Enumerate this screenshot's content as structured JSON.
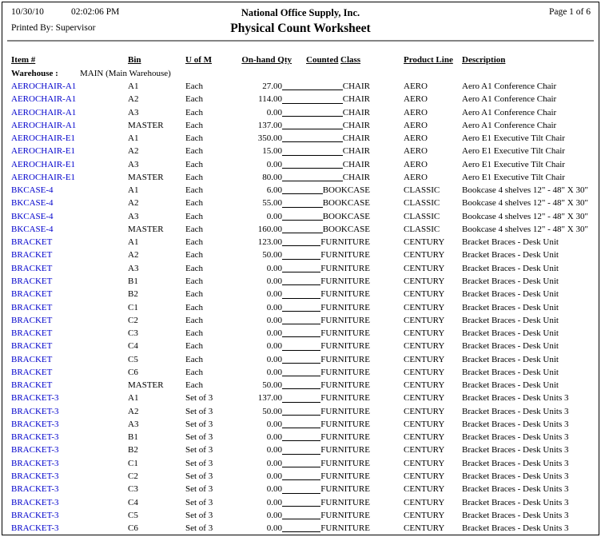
{
  "header": {
    "date": "10/30/10",
    "time": "02:02:06 PM",
    "company": "National Office Supply, Inc.",
    "page_label": "Page 1 of 6",
    "printed_by": "Printed By: Supervisor",
    "title": "Physical Count Worksheet"
  },
  "columns": {
    "item": "Item #",
    "bin": "Bin",
    "uofm": "U of M",
    "qty": "On-hand Qty",
    "counted": "Counted",
    "class": "Class",
    "product_line": "Product Line",
    "description": "Description"
  },
  "warehouse": {
    "label": "Warehouse :",
    "value": "MAIN (Main Warehouse)"
  },
  "colors": {
    "link": "#0000CC",
    "text": "#000000",
    "rule": "#848484"
  },
  "rows": [
    {
      "item": "AEROCHAIR-A1",
      "bin": "A1",
      "uofm": "Each",
      "qty": "27.00",
      "class": "CHAIR",
      "product_line": "AERO",
      "description": "Aero A1 Conference Chair"
    },
    {
      "item": "AEROCHAIR-A1",
      "bin": "A2",
      "uofm": "Each",
      "qty": "114.00",
      "class": "CHAIR",
      "product_line": "AERO",
      "description": "Aero A1 Conference Chair"
    },
    {
      "item": "AEROCHAIR-A1",
      "bin": "A3",
      "uofm": "Each",
      "qty": "0.00",
      "class": "CHAIR",
      "product_line": "AERO",
      "description": "Aero A1 Conference Chair"
    },
    {
      "item": "AEROCHAIR-A1",
      "bin": "MASTER",
      "uofm": "Each",
      "qty": "137.00",
      "class": "CHAIR",
      "product_line": "AERO",
      "description": "Aero A1 Conference Chair"
    },
    {
      "item": "AEROCHAIR-E1",
      "bin": "A1",
      "uofm": "Each",
      "qty": "350.00",
      "class": "CHAIR",
      "product_line": "AERO",
      "description": "Aero E1 Executive Tilt Chair"
    },
    {
      "item": "AEROCHAIR-E1",
      "bin": "A2",
      "uofm": "Each",
      "qty": "15.00",
      "class": "CHAIR",
      "product_line": "AERO",
      "description": "Aero E1 Executive Tilt Chair"
    },
    {
      "item": "AEROCHAIR-E1",
      "bin": "A3",
      "uofm": "Each",
      "qty": "0.00",
      "class": "CHAIR",
      "product_line": "AERO",
      "description": "Aero E1 Executive Tilt Chair"
    },
    {
      "item": "AEROCHAIR-E1",
      "bin": "MASTER",
      "uofm": "Each",
      "qty": "80.00",
      "class": "CHAIR",
      "product_line": "AERO",
      "description": "Aero E1 Executive Tilt Chair"
    },
    {
      "item": "BKCASE-4",
      "bin": "A1",
      "uofm": "Each",
      "qty": "6.00",
      "class": "BOOKCASE",
      "product_line": "CLASSIC",
      "description": "Bookcase 4 shelves 12\" - 48\" X 30\""
    },
    {
      "item": "BKCASE-4",
      "bin": "A2",
      "uofm": "Each",
      "qty": "55.00",
      "class": "BOOKCASE",
      "product_line": "CLASSIC",
      "description": "Bookcase 4 shelves 12\" - 48\" X 30\""
    },
    {
      "item": "BKCASE-4",
      "bin": "A3",
      "uofm": "Each",
      "qty": "0.00",
      "class": "BOOKCASE",
      "product_line": "CLASSIC",
      "description": "Bookcase 4 shelves 12\" - 48\" X 30\""
    },
    {
      "item": "BKCASE-4",
      "bin": "MASTER",
      "uofm": "Each",
      "qty": "160.00",
      "class": "BOOKCASE",
      "product_line": "CLASSIC",
      "description": "Bookcase 4 shelves 12\" - 48\" X 30\""
    },
    {
      "item": "BRACKET",
      "bin": "A1",
      "uofm": "Each",
      "qty": "123.00",
      "class": "FURNITURE",
      "product_line": "CENTURY",
      "description": "Bracket Braces - Desk Unit"
    },
    {
      "item": "BRACKET",
      "bin": "A2",
      "uofm": "Each",
      "qty": "50.00",
      "class": "FURNITURE",
      "product_line": "CENTURY",
      "description": "Bracket Braces - Desk Unit"
    },
    {
      "item": "BRACKET",
      "bin": "A3",
      "uofm": "Each",
      "qty": "0.00",
      "class": "FURNITURE",
      "product_line": "CENTURY",
      "description": "Bracket Braces - Desk Unit"
    },
    {
      "item": "BRACKET",
      "bin": "B1",
      "uofm": "Each",
      "qty": "0.00",
      "class": "FURNITURE",
      "product_line": "CENTURY",
      "description": "Bracket Braces - Desk Unit"
    },
    {
      "item": "BRACKET",
      "bin": "B2",
      "uofm": "Each",
      "qty": "0.00",
      "class": "FURNITURE",
      "product_line": "CENTURY",
      "description": "Bracket Braces - Desk Unit"
    },
    {
      "item": "BRACKET",
      "bin": "C1",
      "uofm": "Each",
      "qty": "0.00",
      "class": "FURNITURE",
      "product_line": "CENTURY",
      "description": "Bracket Braces - Desk Unit"
    },
    {
      "item": "BRACKET",
      "bin": "C2",
      "uofm": "Each",
      "qty": "0.00",
      "class": "FURNITURE",
      "product_line": "CENTURY",
      "description": "Bracket Braces - Desk Unit"
    },
    {
      "item": "BRACKET",
      "bin": "C3",
      "uofm": "Each",
      "qty": "0.00",
      "class": "FURNITURE",
      "product_line": "CENTURY",
      "description": "Bracket Braces - Desk Unit"
    },
    {
      "item": "BRACKET",
      "bin": "C4",
      "uofm": "Each",
      "qty": "0.00",
      "class": "FURNITURE",
      "product_line": "CENTURY",
      "description": "Bracket Braces - Desk Unit"
    },
    {
      "item": "BRACKET",
      "bin": "C5",
      "uofm": "Each",
      "qty": "0.00",
      "class": "FURNITURE",
      "product_line": "CENTURY",
      "description": "Bracket Braces - Desk Unit"
    },
    {
      "item": "BRACKET",
      "bin": "C6",
      "uofm": "Each",
      "qty": "0.00",
      "class": "FURNITURE",
      "product_line": "CENTURY",
      "description": "Bracket Braces - Desk Unit"
    },
    {
      "item": "BRACKET",
      "bin": "MASTER",
      "uofm": "Each",
      "qty": "50.00",
      "class": "FURNITURE",
      "product_line": "CENTURY",
      "description": "Bracket Braces - Desk Unit"
    },
    {
      "item": "BRACKET-3",
      "bin": "A1",
      "uofm": "Set of 3",
      "qty": "137.00",
      "class": "FURNITURE",
      "product_line": "CENTURY",
      "description": "Bracket Braces - Desk Units 3"
    },
    {
      "item": "BRACKET-3",
      "bin": "A2",
      "uofm": "Set of 3",
      "qty": "50.00",
      "class": "FURNITURE",
      "product_line": "CENTURY",
      "description": "Bracket Braces - Desk Units 3"
    },
    {
      "item": "BRACKET-3",
      "bin": "A3",
      "uofm": "Set of 3",
      "qty": "0.00",
      "class": "FURNITURE",
      "product_line": "CENTURY",
      "description": "Bracket Braces - Desk Units 3"
    },
    {
      "item": "BRACKET-3",
      "bin": "B1",
      "uofm": "Set of 3",
      "qty": "0.00",
      "class": "FURNITURE",
      "product_line": "CENTURY",
      "description": "Bracket Braces - Desk Units 3"
    },
    {
      "item": "BRACKET-3",
      "bin": "B2",
      "uofm": "Set of 3",
      "qty": "0.00",
      "class": "FURNITURE",
      "product_line": "CENTURY",
      "description": "Bracket Braces - Desk Units 3"
    },
    {
      "item": "BRACKET-3",
      "bin": "C1",
      "uofm": "Set of 3",
      "qty": "0.00",
      "class": "FURNITURE",
      "product_line": "CENTURY",
      "description": "Bracket Braces - Desk Units 3"
    },
    {
      "item": "BRACKET-3",
      "bin": "C2",
      "uofm": "Set of 3",
      "qty": "0.00",
      "class": "FURNITURE",
      "product_line": "CENTURY",
      "description": "Bracket Braces - Desk Units 3"
    },
    {
      "item": "BRACKET-3",
      "bin": "C3",
      "uofm": "Set of 3",
      "qty": "0.00",
      "class": "FURNITURE",
      "product_line": "CENTURY",
      "description": "Bracket Braces - Desk Units 3"
    },
    {
      "item": "BRACKET-3",
      "bin": "C4",
      "uofm": "Set of 3",
      "qty": "0.00",
      "class": "FURNITURE",
      "product_line": "CENTURY",
      "description": "Bracket Braces - Desk Units 3"
    },
    {
      "item": "BRACKET-3",
      "bin": "C5",
      "uofm": "Set of 3",
      "qty": "0.00",
      "class": "FURNITURE",
      "product_line": "CENTURY",
      "description": "Bracket Braces - Desk Units 3"
    },
    {
      "item": "BRACKET-3",
      "bin": "C6",
      "uofm": "Set of 3",
      "qty": "0.00",
      "class": "FURNITURE",
      "product_line": "CENTURY",
      "description": "Bracket Braces - Desk Units 3"
    }
  ]
}
